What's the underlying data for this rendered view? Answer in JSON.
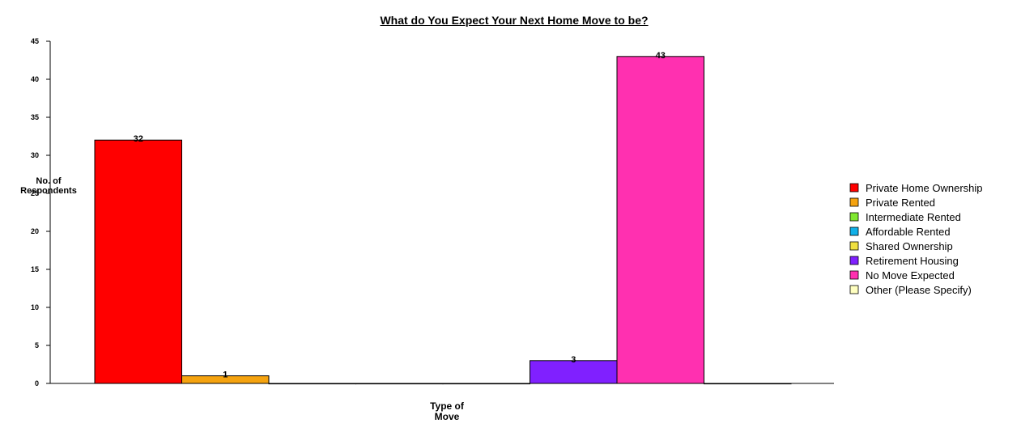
{
  "chart_data": {
    "type": "bar",
    "title": "What do You Expect Your Next Home Move to be?",
    "xlabel": "Type of Move",
    "ylabel": "No. of Respondents",
    "ylim": [
      0,
      45
    ],
    "yticks": [
      0,
      5,
      10,
      15,
      20,
      25,
      30,
      35,
      40,
      45
    ],
    "legend": "right",
    "series": [
      {
        "name": "Private Home Ownership",
        "color": "#ff0000",
        "values": [
          32
        ]
      },
      {
        "name": "Private Rented",
        "color": "#f5a30f",
        "values": [
          1
        ]
      },
      {
        "name": "Intermediate Rented",
        "color": "#80e830",
        "values": [
          0
        ]
      },
      {
        "name": "Affordable Rented",
        "color": "#10b0e8",
        "values": [
          0
        ]
      },
      {
        "name": "Shared Ownership",
        "color": "#f0e040",
        "values": [
          0
        ]
      },
      {
        "name": "Retirement Housing",
        "color": "#8020ff",
        "values": [
          3
        ]
      },
      {
        "name": "No Move Expected",
        "color": "#ff30b0",
        "values": [
          43
        ]
      },
      {
        "name": "Other (Please Specify)",
        "color": "#ffffc0",
        "values": [
          0
        ]
      }
    ]
  }
}
